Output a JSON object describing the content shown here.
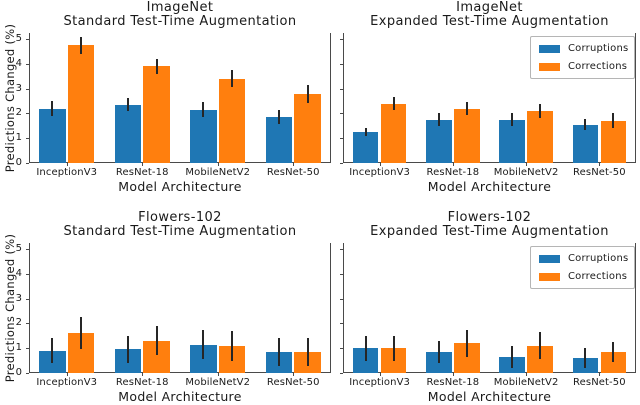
{
  "figure": {
    "background": "#ffffff",
    "shared": {
      "ylabel": "Predictions Changed (%)",
      "xlabel": "Model Architecture",
      "categories": [
        "InceptionV3",
        "ResNet-18",
        "MobileNetV2",
        "ResNet-50"
      ],
      "yticks": [
        0,
        1,
        2,
        3,
        4,
        5
      ]
    },
    "colors": {
      "corruptions": "#1f77b4",
      "corrections": "#ff7f0e",
      "error_bar": "#262626",
      "spine": "#4a4a4a",
      "text": "#1a1a1a"
    },
    "legend_entries": [
      {
        "label": "Corruptions",
        "color": "#1f77b4"
      },
      {
        "label": "Corrections",
        "color": "#ff7f0e"
      }
    ]
  },
  "chart_data": [
    {
      "type": "bar",
      "grid_position": "top-left",
      "title": "ImageNet",
      "subtitle": "Standard Test-Time Augmentation",
      "xlabel": "Model Architecture",
      "ylabel": "Predictions Changed (%)",
      "categories": [
        "InceptionV3",
        "ResNet-18",
        "MobileNetV2",
        "ResNet-50"
      ],
      "ylim": [
        0,
        5.25
      ],
      "yticks": [
        0,
        1,
        2,
        3,
        4,
        5
      ],
      "grid": false,
      "show_ytick_labels": true,
      "show_ylabel": true,
      "legend": false,
      "series": [
        {
          "name": "Corruptions",
          "color": "#1f77b4",
          "values": [
            2.2,
            2.35,
            2.15,
            1.85
          ],
          "errors": [
            0.3,
            0.27,
            0.3,
            0.28
          ]
        },
        {
          "name": "Corrections",
          "color": "#ff7f0e",
          "values": [
            4.75,
            3.9,
            3.4,
            2.8
          ],
          "errors": [
            0.35,
            0.32,
            0.35,
            0.37
          ]
        }
      ]
    },
    {
      "type": "bar",
      "grid_position": "top-right",
      "title": "ImageNet",
      "subtitle": "Expanded Test-Time Augmentation",
      "xlabel": "Model Architecture",
      "ylabel": "",
      "categories": [
        "InceptionV3",
        "ResNet-18",
        "MobileNetV2",
        "ResNet-50"
      ],
      "ylim": [
        0,
        5.25
      ],
      "yticks": [
        0,
        1,
        2,
        3,
        4,
        5
      ],
      "grid": false,
      "show_ytick_labels": false,
      "show_ylabel": false,
      "legend": true,
      "legend_position": "upper right",
      "series": [
        {
          "name": "Corruptions",
          "color": "#1f77b4",
          "values": [
            1.25,
            1.75,
            1.75,
            1.55
          ],
          "errors": [
            0.18,
            0.25,
            0.25,
            0.22
          ]
        },
        {
          "name": "Corrections",
          "color": "#ff7f0e",
          "values": [
            2.4,
            2.2,
            2.1,
            1.7
          ],
          "errors": [
            0.28,
            0.28,
            0.3,
            0.3
          ]
        }
      ]
    },
    {
      "type": "bar",
      "grid_position": "bottom-left",
      "title": "Flowers-102",
      "subtitle": "Standard Test-Time Augmentation",
      "xlabel": "Model Architecture",
      "ylabel": "Predictions Changed (%)",
      "categories": [
        "InceptionV3",
        "ResNet-18",
        "MobileNetV2",
        "ResNet-50"
      ],
      "ylim": [
        0,
        5.25
      ],
      "yticks": [
        0,
        1,
        2,
        3,
        4,
        5
      ],
      "grid": false,
      "show_ytick_labels": true,
      "show_ylabel": true,
      "legend": false,
      "series": [
        {
          "name": "Corruptions",
          "color": "#1f77b4",
          "values": [
            0.9,
            0.95,
            1.15,
            0.85
          ],
          "errors": [
            0.5,
            0.55,
            0.6,
            0.55
          ]
        },
        {
          "name": "Corrections",
          "color": "#ff7f0e",
          "values": [
            1.6,
            1.3,
            1.1,
            0.85
          ],
          "errors": [
            0.65,
            0.58,
            0.6,
            0.55
          ]
        }
      ]
    },
    {
      "type": "bar",
      "grid_position": "bottom-right",
      "title": "Flowers-102",
      "subtitle": "Expanded Test-Time Augmentation",
      "xlabel": "Model Architecture",
      "ylabel": "",
      "categories": [
        "InceptionV3",
        "ResNet-18",
        "MobileNetV2",
        "ResNet-50"
      ],
      "ylim": [
        0,
        5.25
      ],
      "yticks": [
        0,
        1,
        2,
        3,
        4,
        5
      ],
      "grid": false,
      "show_ytick_labels": false,
      "show_ylabel": false,
      "legend": true,
      "legend_position": "upper right",
      "series": [
        {
          "name": "Corruptions",
          "color": "#1f77b4",
          "values": [
            1.0,
            0.85,
            0.65,
            0.6
          ],
          "errors": [
            0.5,
            0.45,
            0.45,
            0.4
          ]
        },
        {
          "name": "Corrections",
          "color": "#ff7f0e",
          "values": [
            1.0,
            1.2,
            1.1,
            0.85
          ],
          "errors": [
            0.5,
            0.55,
            0.55,
            0.4
          ]
        }
      ]
    }
  ]
}
